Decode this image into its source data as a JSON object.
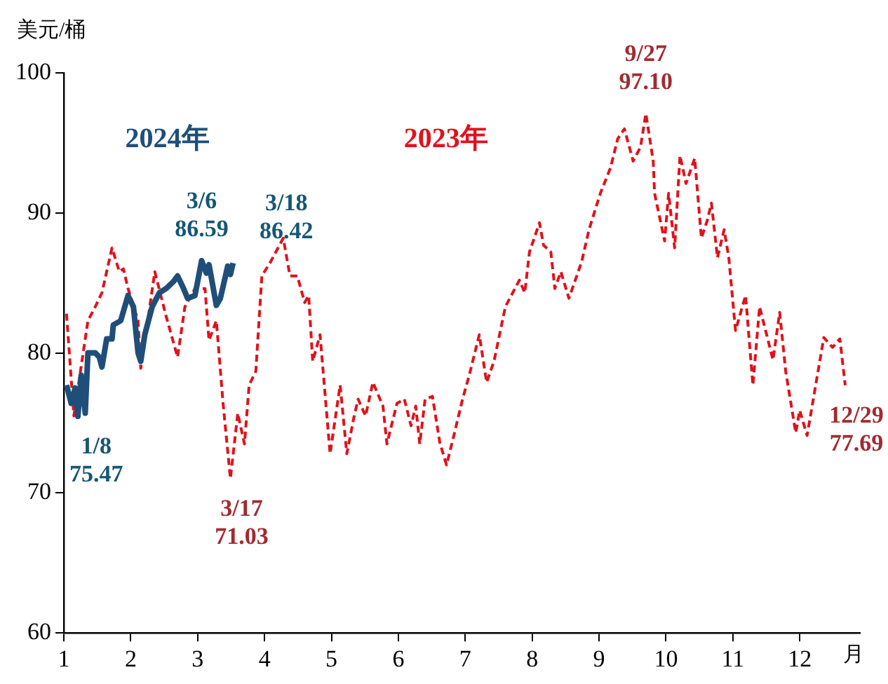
{
  "chart_data": {
    "type": "line",
    "ylabel": "美元/桶",
    "xlabel": "月",
    "xlim": [
      1,
      12.9
    ],
    "xticks": [
      1,
      2,
      3,
      4,
      5,
      6,
      7,
      8,
      9,
      10,
      11,
      12
    ],
    "ylim": [
      60,
      100
    ],
    "yticks": [
      60,
      70,
      80,
      90,
      100
    ],
    "grid": false,
    "legend": false,
    "marker": "none",
    "series": [
      {
        "name": "2023年",
        "color": "#e0121b",
        "line_style": "dashed",
        "x": [
          1.04,
          1.15,
          1.36,
          1.47,
          1.57,
          1.72,
          1.83,
          1.89,
          1.96,
          2.11,
          2.15,
          2.36,
          2.53,
          2.7,
          2.81,
          2.96,
          3.11,
          3.17,
          3.28,
          3.38,
          3.49,
          3.6,
          3.7,
          3.77,
          3.87,
          3.96,
          4.09,
          4.28,
          4.38,
          4.49,
          4.6,
          4.66,
          4.72,
          4.83,
          4.98,
          5.13,
          5.23,
          5.34,
          5.4,
          5.51,
          5.62,
          5.77,
          5.83,
          5.98,
          6.09,
          6.19,
          6.26,
          6.32,
          6.4,
          6.51,
          6.62,
          6.72,
          6.83,
          6.96,
          7.06,
          7.21,
          7.32,
          7.43,
          7.6,
          7.81,
          7.89,
          7.96,
          8.11,
          8.17,
          8.28,
          8.34,
          8.43,
          8.55,
          8.74,
          8.85,
          9.02,
          9.17,
          9.28,
          9.38,
          9.51,
          9.62,
          9.7,
          9.81,
          9.83,
          9.98,
          10.04,
          10.13,
          10.21,
          10.3,
          10.43,
          10.53,
          10.62,
          10.68,
          10.77,
          10.87,
          10.94,
          11.04,
          11.19,
          11.3,
          11.4,
          11.6,
          11.7,
          11.79,
          11.94,
          12.0,
          12.11,
          12.21,
          12.36,
          12.49,
          12.6,
          12.68
        ],
        "values": [
          82.8,
          75.5,
          82.3,
          83.3,
          84.3,
          87.5,
          85.8,
          86.0,
          84.6,
          82.3,
          78.9,
          85.8,
          82.6,
          79.7,
          83.3,
          84.6,
          84.6,
          80.9,
          82.3,
          76.4,
          71.03,
          75.7,
          73.5,
          77.7,
          78.7,
          85.5,
          86.5,
          88.2,
          85.5,
          85.5,
          83.6,
          84.1,
          79.4,
          81.3,
          72.8,
          77.7,
          72.8,
          75.5,
          76.7,
          75.5,
          77.9,
          76.2,
          73.5,
          76.4,
          76.7,
          74.8,
          76.2,
          73.5,
          76.7,
          76.9,
          73.6,
          72.0,
          74.1,
          76.7,
          78.4,
          81.3,
          77.9,
          79.4,
          83.3,
          85.2,
          84.3,
          87.2,
          89.3,
          87.7,
          87.2,
          84.6,
          85.8,
          83.9,
          86.5,
          88.8,
          91.4,
          93.2,
          95.3,
          96.0,
          93.7,
          94.7,
          97.1,
          93.7,
          91.4,
          88.0,
          91.4,
          87.5,
          94.1,
          92.1,
          93.9,
          88.2,
          89.5,
          90.7,
          86.8,
          88.8,
          86.8,
          81.6,
          84.1,
          77.7,
          83.3,
          79.5,
          82.9,
          78.7,
          74.3,
          75.9,
          74.1,
          76.9,
          81.1,
          80.4,
          81.0,
          77.69
        ]
      },
      {
        "name": "2024年",
        "color": "#1f4e79",
        "line_style": "solid",
        "x": [
          1.04,
          1.11,
          1.17,
          1.21,
          1.26,
          1.32,
          1.36,
          1.47,
          1.53,
          1.57,
          1.64,
          1.72,
          1.74,
          1.85,
          1.96,
          2.04,
          2.11,
          2.15,
          2.21,
          2.32,
          2.43,
          2.53,
          2.64,
          2.7,
          2.79,
          2.85,
          2.96,
          3.06,
          3.13,
          3.17,
          3.28,
          3.34,
          3.45,
          3.49,
          3.53
        ],
        "values": [
          77.7,
          76.4,
          77.5,
          75.47,
          78.4,
          75.7,
          80.0,
          80.0,
          79.7,
          79.0,
          81.0,
          81.0,
          82.0,
          82.3,
          84.1,
          83.3,
          80.0,
          79.4,
          81.3,
          83.3,
          84.3,
          84.6,
          85.1,
          85.5,
          84.6,
          83.9,
          84.1,
          86.59,
          85.7,
          86.3,
          83.4,
          83.9,
          86.2,
          85.6,
          86.42
        ]
      }
    ],
    "annotations": [
      {
        "text": "1/8\n75.47",
        "x": 1.21,
        "y": 75.47
      },
      {
        "text": "3/6\n86.59",
        "x": 3.06,
        "y": 86.59
      },
      {
        "text": "3/18\n86.42",
        "x": 3.53,
        "y": 86.42
      },
      {
        "text": "3/17\n71.03",
        "x": 3.49,
        "y": 71.03
      },
      {
        "text": "9/27\n97.10",
        "x": 9.7,
        "y": 97.1
      },
      {
        "text": "12/29\n77.69",
        "x": 12.68,
        "y": 77.69
      }
    ]
  }
}
